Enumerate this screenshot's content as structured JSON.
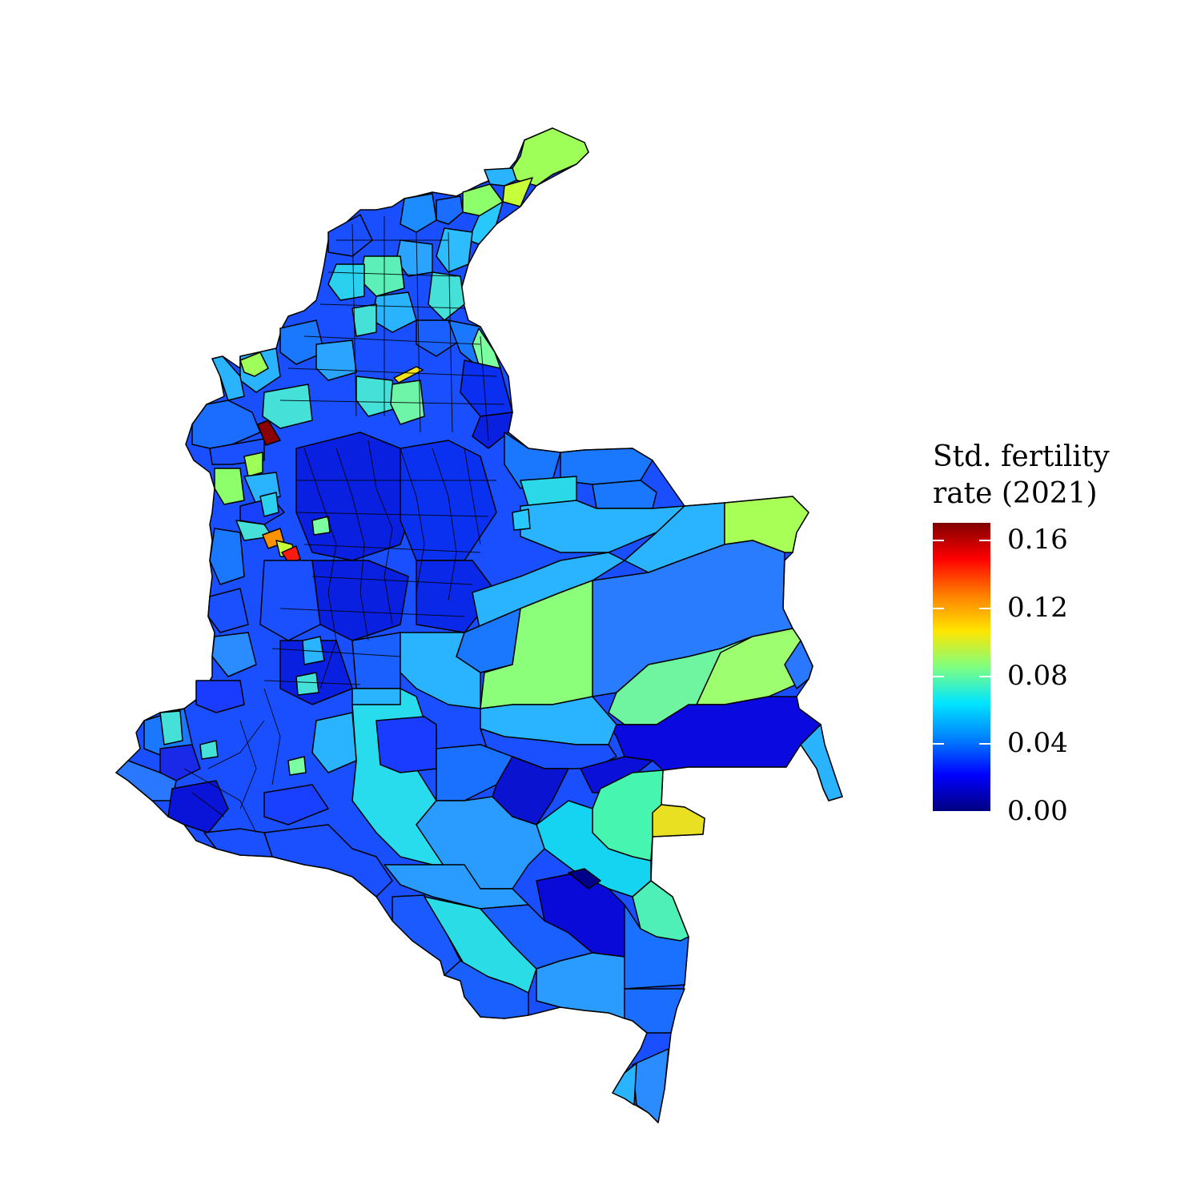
{
  "legend": {
    "title_line1": "Std. fertility",
    "title_line2": "rate (2021)",
    "min": 0.0,
    "max": 0.17,
    "ticks": [
      {
        "value": 0.0,
        "label": "0.00"
      },
      {
        "value": 0.04,
        "label": "0.04"
      },
      {
        "value": 0.08,
        "label": "0.08"
      },
      {
        "value": 0.12,
        "label": "0.12"
      },
      {
        "value": 0.16,
        "label": "0.16"
      }
    ],
    "colors": [
      "#00007f",
      "#0000ff",
      "#007fff",
      "#00e5ff",
      "#7fff7f",
      "#ffe500",
      "#ff7f00",
      "#ff0000",
      "#7f0000"
    ]
  },
  "colors": {
    "border": "#000000",
    "background": "#ffffff"
  }
}
